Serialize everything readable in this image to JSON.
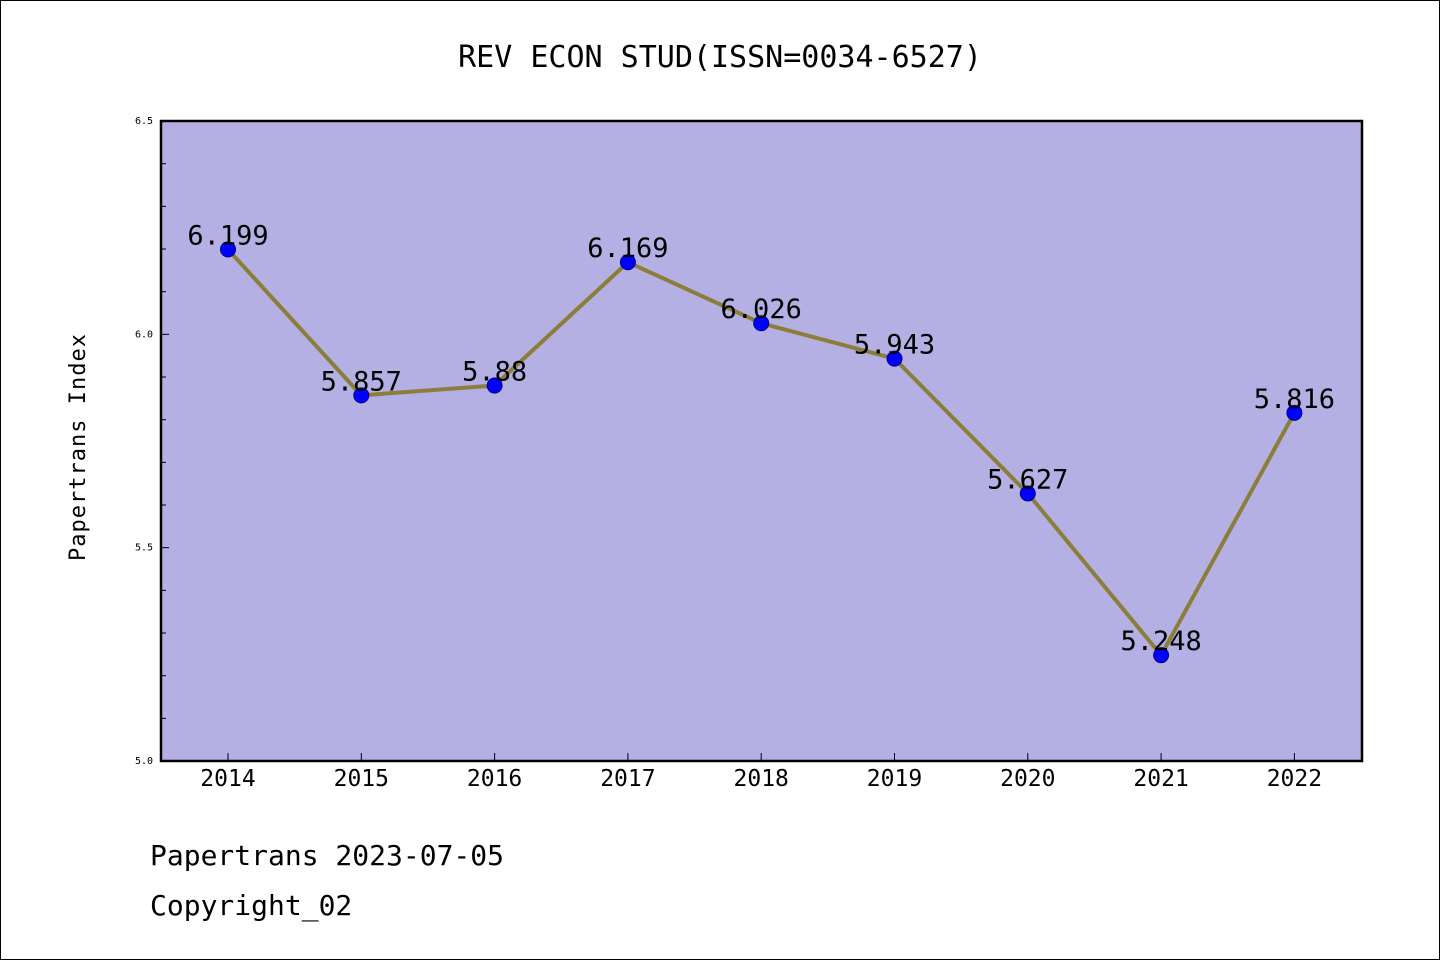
{
  "chart_data": {
    "type": "line",
    "title": "REV ECON STUD(ISSN=0034-6527)",
    "xlabel": "",
    "ylabel": "Papertrans Index",
    "categories": [
      "2014",
      "2015",
      "2016",
      "2017",
      "2018",
      "2019",
      "2020",
      "2021",
      "2022"
    ],
    "values": [
      6.199,
      5.857,
      5.88,
      6.169,
      6.026,
      5.943,
      5.627,
      5.248,
      5.816
    ],
    "value_labels": [
      "6.199",
      "5.857",
      "5.88",
      "6.169",
      "6.026",
      "5.943",
      "5.627",
      "5.248",
      "5.816"
    ],
    "ylim": [
      5.0,
      6.5
    ],
    "yticks": [
      "5.0",
      "5.5",
      "6.0",
      "6.5"
    ],
    "grid": false,
    "colors": {
      "plot_background": "#b5b0e3",
      "line": "#8b7d3a",
      "marker": "#0000ff"
    }
  },
  "footer": {
    "line1": "Papertrans 2023-07-05",
    "line2": "Copyright_02"
  }
}
